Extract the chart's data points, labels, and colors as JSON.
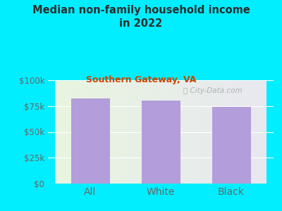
{
  "title": "Median non-family household income\nin 2022",
  "subtitle": "Southern Gateway, VA",
  "categories": [
    "All",
    "White",
    "Black"
  ],
  "values": [
    82000,
    80000,
    74000
  ],
  "bar_color": "#b39ddb",
  "background_outer": "#00eeff",
  "title_color": "#2d2d2d",
  "subtitle_color": "#cc4400",
  "tick_color": "#666666",
  "ylim": [
    0,
    100000
  ],
  "yticks": [
    0,
    25000,
    50000,
    75000,
    100000
  ],
  "ytick_labels": [
    "$0",
    "$25k",
    "$50k",
    "$75k",
    "$100k"
  ],
  "watermark": "City-Data.com",
  "grid_color": "#dddddd"
}
